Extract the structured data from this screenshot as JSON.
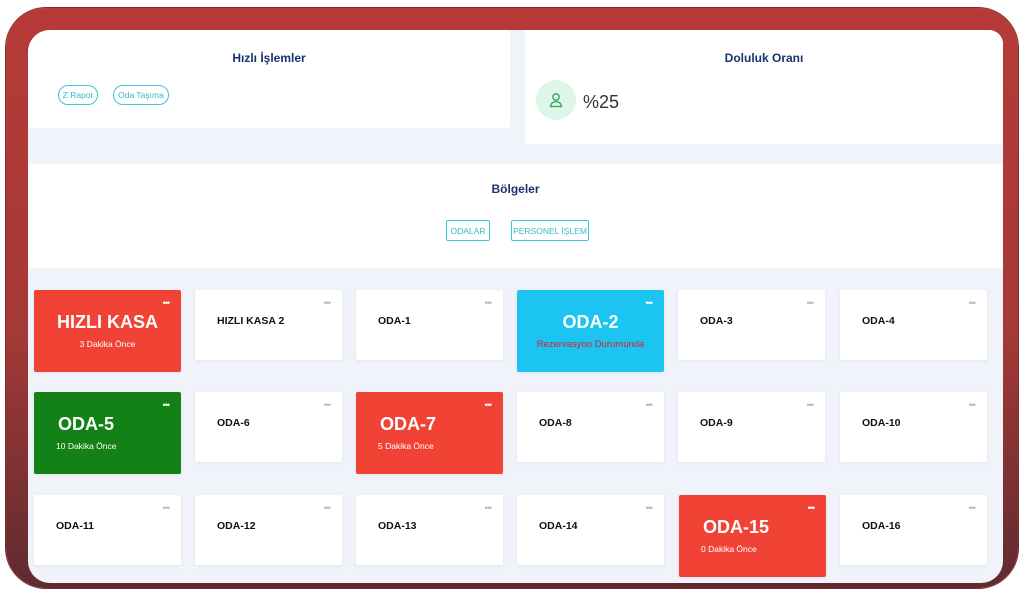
{
  "quick_actions": {
    "title": "Hızlı İşlemler",
    "buttons": [
      "Z Rapor",
      "Oda Taşıma"
    ]
  },
  "occupancy": {
    "title": "Doluluk Oranı",
    "value": "%25",
    "icon": "user-icon",
    "icon_color": "#2ea55b"
  },
  "regions": {
    "title": "Bölgeler",
    "buttons": [
      "ODALAR",
      "PERSONEL İŞLEM"
    ]
  },
  "colors": {
    "accent": "#3cc6d6",
    "occupied_red": "#f04336",
    "occupied_green": "#138216",
    "reserved_cyan": "#1cc4f2"
  },
  "menu_glyph": "•••",
  "rooms": [
    {
      "name": "HIZLI KASA",
      "status": "3 Dakika Önce",
      "color": "red"
    },
    {
      "name": "HIZLI KASA 2",
      "status": "",
      "color": "white"
    },
    {
      "name": "ODA-1",
      "status": "",
      "color": "white"
    },
    {
      "name": "ODA-2",
      "status": "Rezervasyon Durumunda",
      "color": "cyan"
    },
    {
      "name": "ODA-3",
      "status": "",
      "color": "white"
    },
    {
      "name": "ODA-4",
      "status": "",
      "color": "white"
    },
    {
      "name": "ODA-5",
      "status": "10 Dakika Önce",
      "color": "green"
    },
    {
      "name": "ODA-6",
      "status": "",
      "color": "white"
    },
    {
      "name": "ODA-7",
      "status": "5 Dakika Önce",
      "color": "red"
    },
    {
      "name": "ODA-8",
      "status": "",
      "color": "white"
    },
    {
      "name": "ODA-9",
      "status": "",
      "color": "white"
    },
    {
      "name": "ODA-10",
      "status": "",
      "color": "white"
    },
    {
      "name": "ODA-11",
      "status": "",
      "color": "white"
    },
    {
      "name": "ODA-12",
      "status": "",
      "color": "white"
    },
    {
      "name": "ODA-13",
      "status": "",
      "color": "white"
    },
    {
      "name": "ODA-14",
      "status": "",
      "color": "white"
    },
    {
      "name": "ODA-15",
      "status": "0 Dakika Önce",
      "color": "red"
    },
    {
      "name": "ODA-16",
      "status": "",
      "color": "white"
    }
  ]
}
